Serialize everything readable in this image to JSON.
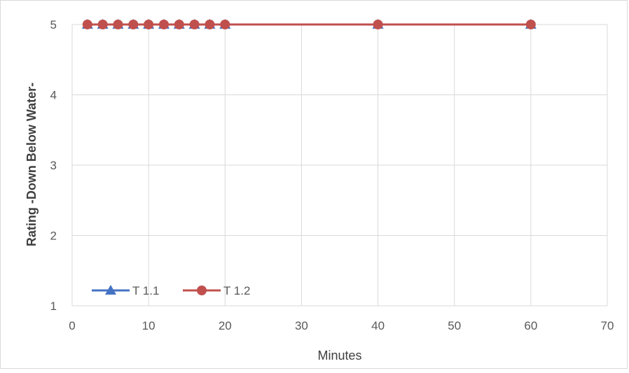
{
  "chart_data": {
    "type": "line",
    "title": "",
    "xlabel": "Minutes",
    "ylabel": "Rating -Down Below Water-",
    "xlim": [
      0,
      70
    ],
    "ylim": [
      1,
      5
    ],
    "x_ticks": [
      0,
      10,
      20,
      30,
      40,
      50,
      60,
      70
    ],
    "y_ticks": [
      1,
      2,
      3,
      4,
      5
    ],
    "grid": true,
    "legend_position": "bottom-left",
    "series": [
      {
        "name": "T 1.1",
        "color": "#4472c4",
        "marker": "triangle",
        "x": [
          2,
          4,
          6,
          8,
          10,
          12,
          14,
          16,
          18,
          20,
          40,
          60
        ],
        "y": [
          5,
          5,
          5,
          5,
          5,
          5,
          5,
          5,
          5,
          5,
          5,
          5
        ]
      },
      {
        "name": "T 1.2",
        "color": "#c0504d",
        "marker": "circle",
        "x": [
          2,
          4,
          6,
          8,
          10,
          12,
          14,
          16,
          18,
          20,
          40,
          60
        ],
        "y": [
          5,
          5,
          5,
          5,
          5,
          5,
          5,
          5,
          5,
          5,
          5,
          5
        ]
      }
    ]
  }
}
